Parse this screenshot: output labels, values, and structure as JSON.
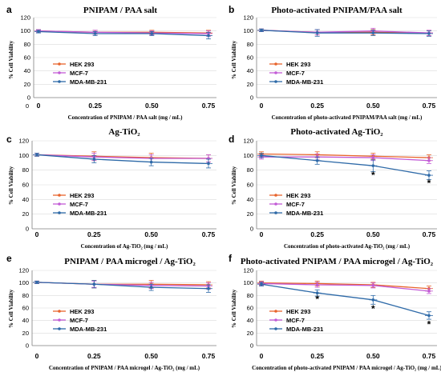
{
  "colors": {
    "hek": "#e8642c",
    "mcf": "#c25bd6",
    "mda": "#2e6aa8",
    "axis": "#7f7f7f",
    "grid": "#d9d9d9"
  },
  "chart_data": [
    {
      "panel": "a",
      "type": "line",
      "title": "PNIPAM / PAA salt",
      "xlabel": "Concentration of PNIPAM / PAA salt (mg / mL)",
      "ylabel": "% Cell Viability",
      "x": [
        0,
        0.25,
        0.5,
        0.75
      ],
      "xticks": [
        "0",
        "0.25",
        "0.50",
        "0.75"
      ],
      "x_extra_label": "0",
      "ylim": [
        0,
        120
      ],
      "yticks": [
        0,
        20,
        40,
        60,
        80,
        100,
        120
      ],
      "grid": true,
      "legend": "middle-left",
      "stars": [],
      "series": [
        {
          "name": "HEK 293",
          "color": "#e8642c",
          "values": [
            100,
            98,
            98,
            97
          ],
          "err": [
            2,
            3,
            3,
            4
          ]
        },
        {
          "name": "MCF-7",
          "color": "#c25bd6",
          "values": [
            100,
            98,
            97,
            96
          ],
          "err": [
            2,
            3,
            3,
            4
          ]
        },
        {
          "name": "MDA-MB-231",
          "color": "#2e6aa8",
          "values": [
            99,
            96,
            96,
            93
          ],
          "err": [
            2,
            3,
            3,
            5
          ]
        }
      ]
    },
    {
      "panel": "b",
      "type": "line",
      "title": "Photo-activated PNIPAM/PAA salt",
      "xlabel": "Concentration of photo-activated PNIPAM/PAA salt (mg / mL)",
      "ylabel": "% Cell Viability",
      "x": [
        0,
        0.25,
        0.5,
        0.75
      ],
      "xticks": [
        "0",
        "0.25",
        "0.50",
        "0.75"
      ],
      "ylim": [
        0,
        120
      ],
      "yticks": [
        0,
        20,
        40,
        60,
        80,
        100,
        120
      ],
      "grid": true,
      "legend": "middle-left",
      "stars": [],
      "series": [
        {
          "name": "HEK 293",
          "color": "#e8642c",
          "values": [
            101,
            98,
            98,
            97
          ],
          "err": [
            2,
            4,
            4,
            4
          ]
        },
        {
          "name": "MCF-7",
          "color": "#c25bd6",
          "values": [
            101,
            98,
            100,
            97
          ],
          "err": [
            2,
            4,
            4,
            4
          ]
        },
        {
          "name": "MDA-MB-231",
          "color": "#2e6aa8",
          "values": [
            101,
            97,
            97,
            96
          ],
          "err": [
            2,
            5,
            4,
            4
          ]
        }
      ]
    },
    {
      "panel": "c",
      "type": "line",
      "title": "Ag-TiO₂",
      "xlabel": "Concentration of Ag-TiO₂ (mg / mL)",
      "ylabel": "% Cell Viability",
      "x": [
        0,
        0.25,
        0.5,
        0.75
      ],
      "xticks": [
        "0",
        "0.25",
        "0.50",
        "0.75"
      ],
      "ylim": [
        0,
        120
      ],
      "yticks": [
        0,
        20,
        40,
        60,
        80,
        100,
        120
      ],
      "grid": true,
      "legend": "lower-left",
      "stars": [],
      "series": [
        {
          "name": "HEK 293",
          "color": "#e8642c",
          "values": [
            101,
            99,
            97,
            96
          ],
          "err": [
            2,
            6,
            6,
            5
          ]
        },
        {
          "name": "MCF-7",
          "color": "#c25bd6",
          "values": [
            101,
            98,
            96,
            96
          ],
          "err": [
            2,
            5,
            5,
            5
          ]
        },
        {
          "name": "MDA-MB-231",
          "color": "#2e6aa8",
          "values": [
            101,
            95,
            91,
            89
          ],
          "err": [
            2,
            5,
            5,
            6
          ]
        }
      ]
    },
    {
      "panel": "d",
      "type": "line",
      "title": "Photo-activated Ag-TiO₂",
      "xlabel": "Concentration of photo-activated Ag-TiO₂ (mg / mL)",
      "ylabel": "% Cell Viability",
      "x": [
        0,
        0.25,
        0.5,
        0.75
      ],
      "xticks": [
        "0",
        "0.25",
        "0.50",
        "0.75"
      ],
      "ylim": [
        0,
        120
      ],
      "yticks": [
        0,
        20,
        40,
        60,
        80,
        100,
        120
      ],
      "grid": true,
      "legend": "lower-left",
      "stars": [
        {
          "x": 0.5,
          "y": 73
        },
        {
          "x": 0.75,
          "y": 62
        }
      ],
      "series": [
        {
          "name": "HEK 293",
          "color": "#e8642c",
          "values": [
            102,
            101,
            99,
            97
          ],
          "err": [
            3,
            4,
            4,
            4
          ]
        },
        {
          "name": "MCF-7",
          "color": "#c25bd6",
          "values": [
            98,
            98,
            97,
            93
          ],
          "err": [
            3,
            4,
            4,
            4
          ]
        },
        {
          "name": "MDA-MB-231",
          "color": "#2e6aa8",
          "values": [
            100,
            93,
            86,
            73
          ],
          "err": [
            3,
            5,
            8,
            6
          ]
        }
      ]
    },
    {
      "panel": "e",
      "type": "line",
      "title": "PNIPAM / PAA microgel / Ag-TiO₂",
      "xlabel": "Concentration of PNIPAM / PAA microgel / Ag-TiO₂ (mg / mL)",
      "ylabel": "% Cell Viability",
      "x": [
        0,
        0.25,
        0.5,
        0.75
      ],
      "xticks": [
        "0",
        "0.25",
        "0.50",
        "0.75"
      ],
      "ylim": [
        0,
        120
      ],
      "yticks": [
        0,
        20,
        40,
        60,
        80,
        100,
        120
      ],
      "grid": true,
      "legend": "lower-left",
      "stars": [],
      "series": [
        {
          "name": "HEK 293",
          "color": "#e8642c",
          "values": [
            101,
            98,
            98,
            97
          ],
          "err": [
            2,
            6,
            6,
            5
          ]
        },
        {
          "name": "MCF-7",
          "color": "#c25bd6",
          "values": [
            101,
            98,
            96,
            95
          ],
          "err": [
            2,
            5,
            5,
            5
          ]
        },
        {
          "name": "MDA-MB-231",
          "color": "#2e6aa8",
          "values": [
            101,
            98,
            93,
            91
          ],
          "err": [
            2,
            6,
            5,
            6
          ]
        }
      ]
    },
    {
      "panel": "f",
      "type": "line",
      "title": "Photo-activated PNIPAM / PAA microgel / Ag-TiO₂",
      "xlabel": "Concentration of photo-activated PNIPAM / PAA microgel / Ag-TiO₂ (mg / mL)",
      "ylabel": "% Cell Viability",
      "x": [
        0,
        0.25,
        0.5,
        0.75
      ],
      "xticks": [
        "0",
        "0.25",
        "0.50",
        "0.75"
      ],
      "ylim": [
        0,
        120
      ],
      "yticks": [
        0,
        20,
        40,
        60,
        80,
        100,
        120
      ],
      "grid": true,
      "legend": "lower-left",
      "stars": [
        {
          "x": 0.25,
          "y": 74
        },
        {
          "x": 0.5,
          "y": 59
        },
        {
          "x": 0.75,
          "y": 34
        }
      ],
      "series": [
        {
          "name": "HEK 293",
          "color": "#e8642c",
          "values": [
            100,
            99,
            97,
            91
          ],
          "err": [
            3,
            4,
            4,
            4
          ]
        },
        {
          "name": "MCF-7",
          "color": "#c25bd6",
          "values": [
            99,
            97,
            96,
            87
          ],
          "err": [
            3,
            4,
            4,
            4
          ]
        },
        {
          "name": "MDA-MB-231",
          "color": "#2e6aa8",
          "values": [
            98,
            84,
            73,
            48
          ],
          "err": [
            3,
            5,
            7,
            6
          ]
        }
      ]
    }
  ]
}
